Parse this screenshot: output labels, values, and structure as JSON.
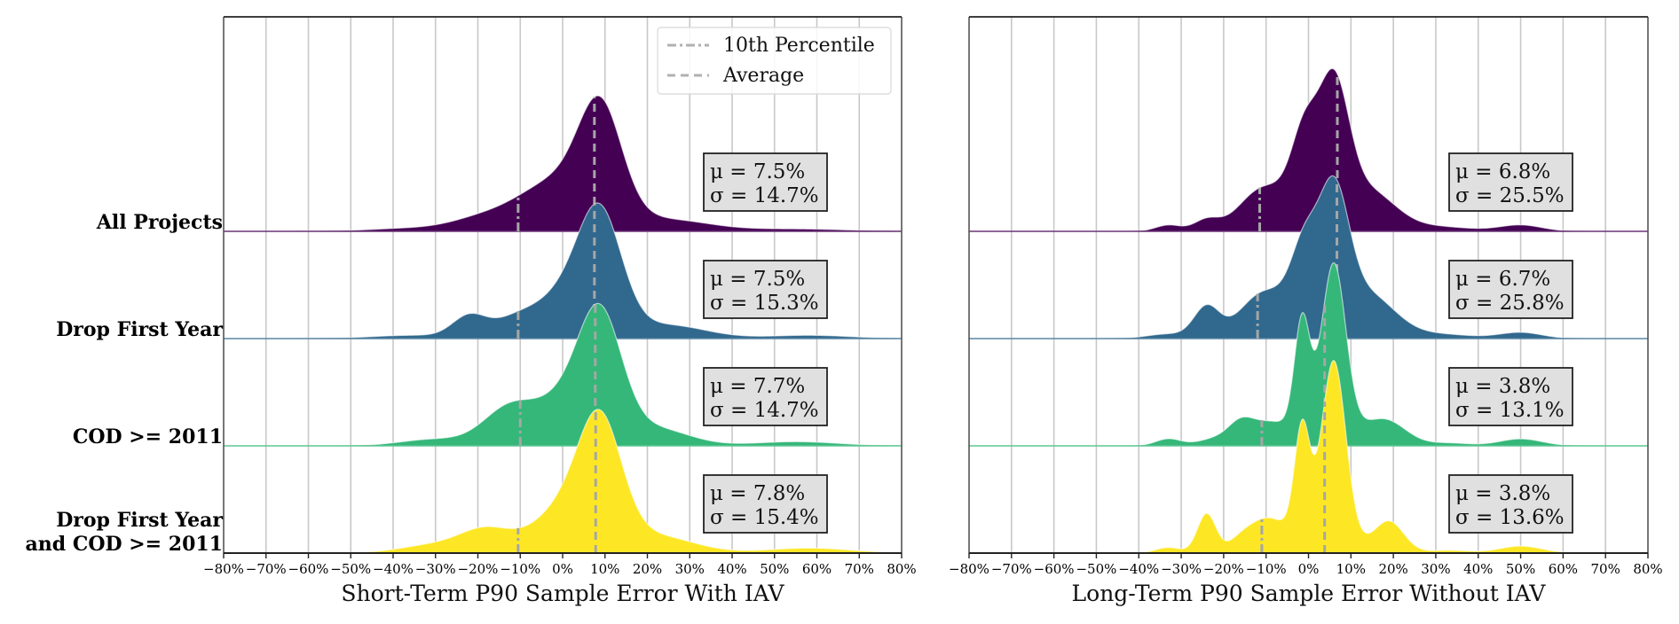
{
  "chart_data": [
    {
      "type": "area",
      "subtype": "ridgeline-kde",
      "xlabel": "Short-Term P90 Sample Error With IAV",
      "xlim": [
        -80,
        80
      ],
      "x_unit": "%",
      "xticks": [
        -80,
        -70,
        -60,
        -50,
        -40,
        -30,
        -20,
        -10,
        0,
        10,
        20,
        30,
        40,
        50,
        60,
        70,
        80
      ],
      "xtick_labels": [
        "−80%",
        "−70%",
        "−60%",
        "−50%",
        "−40%",
        "−30%",
        "−20%",
        "−10%",
        "0%",
        "10%",
        "20%",
        "30%",
        "40%",
        "50%",
        "60%",
        "70%",
        "80%"
      ],
      "grid": "vertical",
      "legend": {
        "placement": "top-right",
        "entries": [
          {
            "label": "10th Percentile",
            "style": "dash-dot",
            "color": "#b0b0b0"
          },
          {
            "label": "Average",
            "style": "dashed",
            "color": "#b0b0b0"
          }
        ]
      },
      "series": [
        {
          "name": "All Projects",
          "color": "#440154",
          "mean": 7.5,
          "std": 14.7,
          "mean_label": "μ = 7.5%",
          "std_label": "σ = 14.7%",
          "p10": -10.5,
          "peak_height": 1.0,
          "components": [
            [
              9,
              5,
              0.62
            ],
            [
              2,
              9,
              0.28
            ],
            [
              -20,
              7,
              0.06
            ],
            [
              -8,
              8,
              0.1
            ],
            [
              25,
              10,
              0.07
            ],
            [
              -35,
              10,
              0.02
            ],
            [
              55,
              12,
              0.015
            ]
          ]
        },
        {
          "name": "Drop First Year",
          "color": "#31688e",
          "mean": 7.5,
          "std": 15.3,
          "mean_label": "μ = 7.5%",
          "std_label": "σ = 15.3%",
          "p10": -10.5,
          "peak_height": 1.0,
          "components": [
            [
              9,
              5,
              0.6
            ],
            [
              2,
              8,
              0.3
            ],
            [
              -22,
              4,
              0.13
            ],
            [
              -12,
              5,
              0.08
            ],
            [
              25,
              9,
              0.08
            ],
            [
              -35,
              10,
              0.02
            ],
            [
              58,
              10,
              0.02
            ]
          ]
        },
        {
          "name": "COD >= 2011",
          "color": "#35b779",
          "mean": 7.7,
          "std": 14.7,
          "mean_label": "μ = 7.7%",
          "std_label": "σ = 14.7%",
          "p10": -10.0,
          "peak_height": 1.05,
          "components": [
            [
              9,
              5,
              0.62
            ],
            [
              2,
              8,
              0.3
            ],
            [
              -13,
              6,
              0.2
            ],
            [
              22,
              8,
              0.1
            ],
            [
              -30,
              8,
              0.04
            ],
            [
              55,
              10,
              0.025
            ]
          ]
        },
        {
          "name": "Drop First Year\nand COD >= 2011",
          "color": "#fde725",
          "mean": 7.8,
          "std": 15.4,
          "mean_label": "μ = 7.8%",
          "std_label": "σ = 15.4%",
          "p10": -10.5,
          "peak_height": 1.06,
          "components": [
            [
              9,
              5,
              0.62
            ],
            [
              2,
              8,
              0.3
            ],
            [
              -18,
              6,
              0.13
            ],
            [
              22,
              9,
              0.1
            ],
            [
              -30,
              8,
              0.05
            ],
            [
              58,
              10,
              0.03
            ]
          ]
        }
      ]
    },
    {
      "type": "area",
      "subtype": "ridgeline-kde",
      "xlabel": "Long-Term P90 Sample Error Without IAV",
      "xlim": [
        -80,
        80
      ],
      "x_unit": "%",
      "xticks": [
        -80,
        -70,
        -60,
        -50,
        -40,
        -30,
        -20,
        -10,
        0,
        10,
        20,
        30,
        40,
        50,
        60,
        70,
        80
      ],
      "xtick_labels": [
        "−80%",
        "−70%",
        "−60%",
        "−50%",
        "−40%",
        "−30%",
        "−20%",
        "−10%",
        "0%",
        "10%",
        "20%",
        "30%",
        "40%",
        "50%",
        "60%",
        "70%",
        "80%"
      ],
      "grid": "vertical",
      "series": [
        {
          "name": "All Projects",
          "color": "#440154",
          "mean": 6.8,
          "std": 25.5,
          "mean_label": "μ = 6.8%",
          "std_label": "σ = 25.5%",
          "p10": -11.5,
          "peak_height": 1.2,
          "components": [
            [
              6,
              3.5,
              0.75
            ],
            [
              -1,
              3,
              0.4
            ],
            [
              0,
              9,
              0.25
            ],
            [
              -12,
              5,
              0.17
            ],
            [
              -24,
              3,
              0.07
            ],
            [
              15,
              6,
              0.2
            ],
            [
              -33,
              3,
              0.04
            ],
            [
              50,
              5,
              0.04
            ],
            [
              30,
              8,
              0.03
            ]
          ]
        },
        {
          "name": "Drop First Year",
          "color": "#31688e",
          "mean": 6.7,
          "std": 25.8,
          "mean_label": "μ = 6.7%",
          "std_label": "σ = 25.8%",
          "p10": -12.0,
          "peak_height": 1.2,
          "components": [
            [
              6,
              3.5,
              0.75
            ],
            [
              -1,
              3,
              0.35
            ],
            [
              0,
              9,
              0.28
            ],
            [
              -12,
              5,
              0.18
            ],
            [
              -24,
              3,
              0.2
            ],
            [
              15,
              6,
              0.22
            ],
            [
              -33,
              5,
              0.03
            ],
            [
              50,
              5,
              0.04
            ],
            [
              30,
              8,
              0.03
            ]
          ]
        },
        {
          "name": "COD >= 2011",
          "color": "#35b779",
          "mean": 3.8,
          "std": 13.1,
          "mean_label": "μ = 3.8%",
          "std_label": "σ = 13.1%",
          "p10": -11.0,
          "peak_height": 1.35,
          "components": [
            [
              6,
              2.8,
              1.15
            ],
            [
              -1.5,
              1.8,
              0.75
            ],
            [
              2,
              7,
              0.18
            ],
            [
              -10,
              4,
              0.12
            ],
            [
              -16,
              3,
              0.14
            ],
            [
              18,
              5,
              0.18
            ],
            [
              -33,
              3,
              0.05
            ],
            [
              -22,
              4,
              0.05
            ],
            [
              50,
              5,
              0.05
            ],
            [
              33,
              5,
              0.02
            ]
          ]
        },
        {
          "name": "Drop First Year\nand COD >= 2011",
          "color": "#fde725",
          "mean": 3.8,
          "std": 13.6,
          "mean_label": "μ = 3.8%",
          "std_label": "σ = 13.6%",
          "p10": -11.0,
          "peak_height": 1.42,
          "components": [
            [
              6,
              2.8,
              1.22
            ],
            [
              -1.5,
              1.8,
              0.74
            ],
            [
              2,
              7,
              0.18
            ],
            [
              -10,
              4,
              0.2
            ],
            [
              -24,
              2.2,
              0.28
            ],
            [
              -16,
              3,
              0.08
            ],
            [
              19,
              3.5,
              0.22
            ],
            [
              -33,
              3,
              0.04
            ],
            [
              50,
              5,
              0.05
            ],
            [
              33,
              5,
              0.02
            ]
          ]
        }
      ]
    }
  ]
}
